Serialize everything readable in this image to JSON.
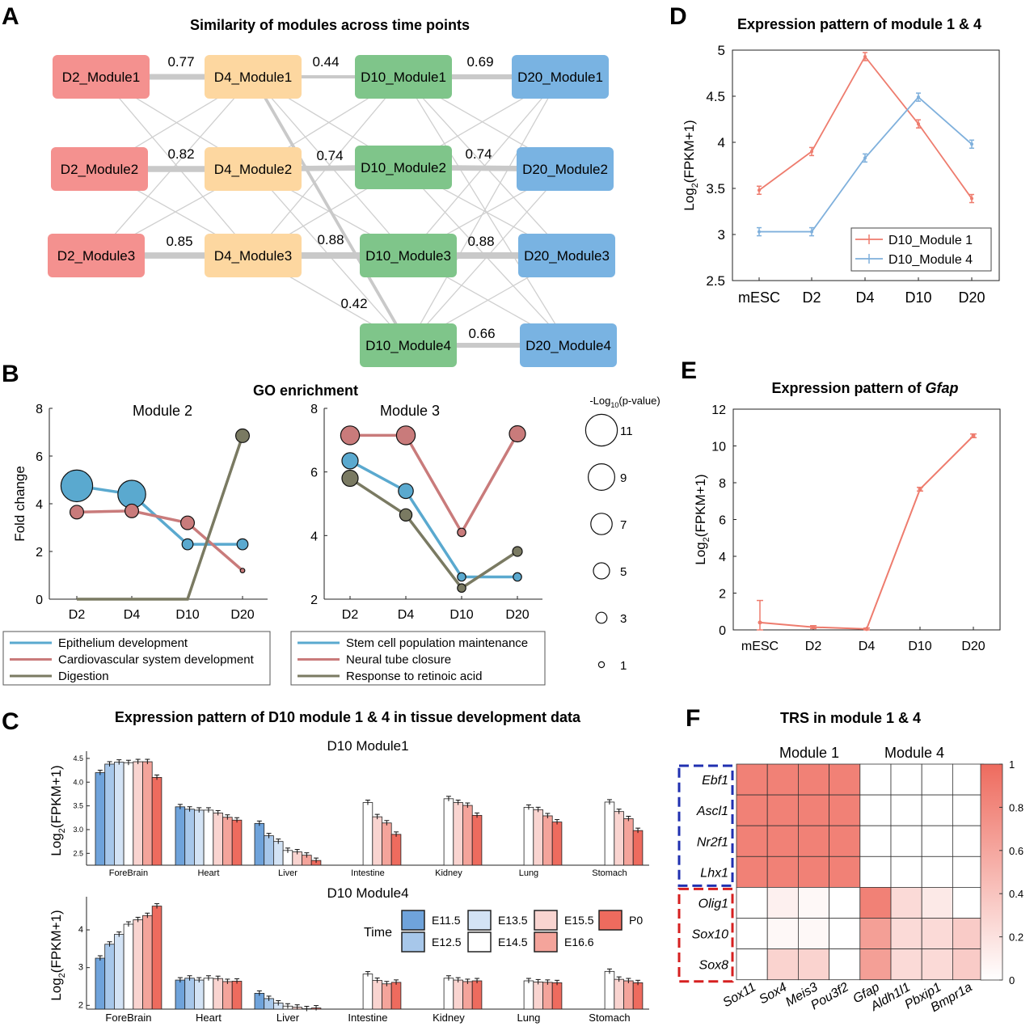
{
  "panel_letters": {
    "A": "A",
    "B": "B",
    "C": "C",
    "D": "D",
    "E": "E",
    "F": "F"
  },
  "panelA": {
    "title": "Similarity of modules across time points",
    "columns": [
      [
        "D2_Module1",
        "D2_Module2",
        "D2_Module3"
      ],
      [
        "D4_Module1",
        "D4_Module2",
        "D4_Module3"
      ],
      [
        "D10_Module1",
        "D10_Module2",
        "D10_Module3",
        "D10_Module4"
      ],
      [
        "D20_Module1",
        "D20_Module2",
        "D20_Module3",
        "D20_Module4"
      ]
    ],
    "column_colors": [
      "#f4918f",
      "#fdd7a0",
      "#7fc58a",
      "#79b3e2"
    ],
    "strong_edges": [
      {
        "from": [
          0,
          0
        ],
        "to": [
          1,
          0
        ],
        "label": "0.77"
      },
      {
        "from": [
          1,
          0
        ],
        "to": [
          2,
          0
        ],
        "label": "0.44"
      },
      {
        "from": [
          2,
          0
        ],
        "to": [
          3,
          0
        ],
        "label": "0.69"
      },
      {
        "from": [
          0,
          1
        ],
        "to": [
          1,
          1
        ],
        "label": "0.82"
      },
      {
        "from": [
          1,
          1
        ],
        "to": [
          2,
          1
        ],
        "label": "0.74"
      },
      {
        "from": [
          2,
          1
        ],
        "to": [
          3,
          1
        ],
        "label": "0.74"
      },
      {
        "from": [
          0,
          2
        ],
        "to": [
          1,
          2
        ],
        "label": "0.85"
      },
      {
        "from": [
          1,
          2
        ],
        "to": [
          2,
          2
        ],
        "label": "0.88"
      },
      {
        "from": [
          2,
          2
        ],
        "to": [
          3,
          2
        ],
        "label": "0.88"
      },
      {
        "from": [
          1,
          0
        ],
        "to": [
          2,
          3
        ],
        "label": "0.42"
      },
      {
        "from": [
          2,
          3
        ],
        "to": [
          3,
          3
        ],
        "label": "0.66"
      }
    ]
  },
  "panelB": {
    "title": "GO enrichment",
    "size_legend": {
      "title": "-Log10(p-value)",
      "levels": [
        "11",
        "9",
        "7",
        "5",
        "3",
        "1"
      ]
    },
    "charts": [
      {
        "title": "Module 2",
        "ylabel": "Fold change",
        "categories": [
          "D2",
          "D4",
          "D10",
          "D20"
        ],
        "yticks": [
          "0",
          "2",
          "4",
          "6",
          "8"
        ],
        "legend": [
          "Epithelium development",
          "Cardiovascular system development",
          "Digestion"
        ]
      },
      {
        "title": "Module 3",
        "ylabel": "",
        "categories": [
          "D2",
          "D4",
          "D10",
          "D20"
        ],
        "yticks": [
          "2",
          "4",
          "6",
          "8"
        ],
        "legend": [
          "Stem cell population maintenance",
          "Neural tube closure",
          "Response to retinoic acid"
        ]
      }
    ]
  },
  "panelC": {
    "title": "Expression pattern of D10 module 1 & 4 in tissue development data",
    "legend_title": "Time",
    "timepoints": [
      "E11.5",
      "E12.5",
      "E13.5",
      "E14.5",
      "E15.5",
      "E16.6",
      "P0"
    ],
    "subpanels": [
      {
        "title": "D10 Module1",
        "ylabel": "Log2(FPKM+1)",
        "yticks": [
          "2.5",
          "3.0",
          "3.5",
          "4.0",
          "4.5"
        ]
      },
      {
        "title": "D10 Module4",
        "ylabel": "Log2(FPKM+1)",
        "yticks": [
          "2",
          "3",
          "4"
        ]
      }
    ]
  },
  "panelD": {
    "title": "Expression pattern of module 1 & 4",
    "ylabel": "Log2(FPKM+1)",
    "yticks": [
      "2.5",
      "3",
      "3.5",
      "4",
      "4.5",
      "5"
    ],
    "legend": [
      "D10_Module 1",
      "D10_Module 4"
    ]
  },
  "panelE": {
    "title": "Expression pattern of ",
    "title_gene": "Gfap",
    "ylabel": "Log2(FPKM+1)",
    "yticks": [
      "0",
      "2",
      "4",
      "6",
      "8",
      "10",
      "12"
    ]
  },
  "panelF": {
    "title": "TRS in module 1 & 4",
    "col_groups": [
      "Module 1",
      "Module 4"
    ],
    "rows": [
      "Ebf1",
      "Ascl1",
      "Nr2f1",
      "Lhx1",
      "Olig1",
      "Sox10",
      "Sox8"
    ],
    "cols": [
      "Sox11",
      "Sox4",
      "Meis3",
      "Pou3f2",
      "Gfap",
      "Aldh1l1",
      "Pbxip1",
      "Bmpr1a"
    ],
    "colorbar_ticks": [
      "0",
      "0.2",
      "0.4",
      "0.6",
      "0.8",
      "1"
    ]
  },
  "chart_data": [
    {
      "type": "line",
      "title": "Module 2",
      "xlabel": "",
      "ylabel": "Fold change",
      "ylim": [
        0,
        8
      ],
      "categories": [
        "D2",
        "D4",
        "D10",
        "D20"
      ],
      "series": [
        {
          "name": "Epithelium development",
          "color": "#5aa9cf",
          "values": [
            4.75,
            4.4,
            2.3,
            2.3
          ],
          "neglog10p": [
            11,
            9.5,
            3,
            3
          ]
        },
        {
          "name": "Cardiovascular system development",
          "color": "#c97b7b",
          "values": [
            3.65,
            3.7,
            3.2,
            1.2
          ],
          "neglog10p": [
            4,
            4,
            4,
            0.5
          ]
        },
        {
          "name": "Digestion",
          "color": "#7a7a62",
          "values": [
            0,
            0,
            0,
            6.85
          ],
          "neglog10p": [
            0,
            0,
            0,
            4
          ]
        }
      ]
    },
    {
      "type": "line",
      "title": "Module 3",
      "xlabel": "",
      "ylabel": "",
      "ylim": [
        2,
        8
      ],
      "categories": [
        "D2",
        "D4",
        "D10",
        "D20"
      ],
      "series": [
        {
          "name": "Stem cell population maintenance",
          "color": "#5aa9cf",
          "values": [
            6.35,
            5.4,
            2.7,
            2.7
          ],
          "neglog10p": [
            5,
            4.5,
            2,
            2
          ]
        },
        {
          "name": "Neural tube closure",
          "color": "#c97b7b",
          "values": [
            7.15,
            7.15,
            4.1,
            7.2
          ],
          "neglog10p": [
            6,
            6,
            2,
            5
          ]
        },
        {
          "name": "Response to retinoic acid",
          "color": "#7a7a62",
          "values": [
            5.8,
            4.65,
            2.35,
            3.5
          ],
          "neglog10p": [
            5,
            3.5,
            2,
            2.5
          ]
        }
      ]
    },
    {
      "type": "bar",
      "title": "D10 Module1",
      "ylabel": "Log2(FPKM+1)",
      "ylim": [
        2.25,
        4.55
      ],
      "categories": [
        "ForeBrain",
        "Heart",
        "Liver",
        "Intestine",
        "Kidney",
        "Lung",
        "Stomach"
      ],
      "series": [
        {
          "name": "E11.5",
          "values": [
            4.2,
            3.48,
            3.13,
            null,
            null,
            null,
            null
          ]
        },
        {
          "name": "E12.5",
          "values": [
            4.38,
            3.43,
            2.87,
            null,
            null,
            null,
            null
          ]
        },
        {
          "name": "E13.5",
          "values": [
            4.42,
            3.41,
            2.75,
            null,
            null,
            null,
            null
          ]
        },
        {
          "name": "E14.5",
          "values": [
            4.41,
            3.41,
            2.56,
            3.57,
            3.65,
            3.47,
            3.58
          ]
        },
        {
          "name": "E15.5",
          "values": [
            4.43,
            3.35,
            2.53,
            3.27,
            3.57,
            3.42,
            3.38
          ]
        },
        {
          "name": "E16.6",
          "values": [
            4.43,
            3.26,
            2.46,
            3.14,
            3.51,
            3.29,
            3.23
          ]
        },
        {
          "name": "P0",
          "values": [
            4.1,
            3.2,
            2.35,
            2.9,
            3.3,
            3.16,
            2.98
          ]
        }
      ]
    },
    {
      "type": "bar",
      "title": "D10 Module4",
      "ylabel": "Log2(FPKM+1)",
      "ylim": [
        1.9,
        4.75
      ],
      "categories": [
        "ForeBrain",
        "Heart",
        "Liver",
        "Intestine",
        "Kidney",
        "Lung",
        "Stomach"
      ],
      "series": [
        {
          "name": "E11.5",
          "values": [
            3.25,
            2.67,
            2.32,
            null,
            null,
            null,
            null
          ]
        },
        {
          "name": "E12.5",
          "values": [
            3.62,
            2.72,
            2.18,
            null,
            null,
            null,
            null
          ]
        },
        {
          "name": "E13.5",
          "values": [
            3.88,
            2.67,
            2.06,
            null,
            null,
            null,
            null
          ]
        },
        {
          "name": "E14.5",
          "values": [
            4.15,
            2.72,
            1.98,
            2.83,
            2.72,
            2.65,
            2.9
          ]
        },
        {
          "name": "E15.5",
          "values": [
            4.27,
            2.71,
            1.95,
            2.66,
            2.67,
            2.62,
            2.69
          ]
        },
        {
          "name": "E16.6",
          "values": [
            4.38,
            2.63,
            1.91,
            2.57,
            2.63,
            2.61,
            2.65
          ]
        },
        {
          "name": "P0",
          "values": [
            4.63,
            2.64,
            1.93,
            2.61,
            2.65,
            2.6,
            2.6
          ]
        }
      ]
    },
    {
      "type": "line",
      "title": "Expression pattern of module 1 & 4",
      "ylabel": "Log2(FPKM+1)",
      "ylim": [
        2.5,
        5
      ],
      "categories": [
        "mESC",
        "D2",
        "D4",
        "D10",
        "D20"
      ],
      "series": [
        {
          "name": "D10_Module 1",
          "color": "#ee7c6e",
          "values": [
            3.48,
            3.9,
            4.93,
            4.2,
            3.39
          ]
        },
        {
          "name": "D10_Module 4",
          "color": "#7fb0dc",
          "values": [
            3.03,
            3.03,
            3.83,
            4.49,
            3.98
          ]
        }
      ]
    },
    {
      "type": "line",
      "title": "Expression pattern of Gfap",
      "ylabel": "Log2(FPKM+1)",
      "ylim": [
        0,
        12
      ],
      "categories": [
        "mESC",
        "D2",
        "D4",
        "D10",
        "D20"
      ],
      "series": [
        {
          "name": "Gfap",
          "color": "#ee7c6e",
          "values": [
            0.4,
            0.15,
            0.05,
            7.65,
            10.55
          ]
        }
      ]
    },
    {
      "type": "heatmap",
      "title": "TRS in module 1 & 4",
      "rows": [
        "Ebf1",
        "Ascl1",
        "Nr2f1",
        "Lhx1",
        "Olig1",
        "Sox10",
        "Sox8"
      ],
      "cols": [
        "Sox11",
        "Sox4",
        "Meis3",
        "Pou3f2",
        "Gfap",
        "Aldh1l1",
        "Pbxip1",
        "Bmpr1a"
      ],
      "values": [
        [
          0.85,
          0.85,
          0.85,
          0.85,
          0,
          0,
          0,
          0
        ],
        [
          0.85,
          0.85,
          0.85,
          0.85,
          0,
          0,
          0,
          0
        ],
        [
          0.85,
          0.85,
          0.85,
          0.85,
          0,
          0,
          0,
          0
        ],
        [
          0.85,
          0.85,
          0.85,
          0.85,
          0,
          0,
          0,
          0
        ],
        [
          0,
          0.1,
          0.05,
          0,
          0.85,
          0.25,
          0.15,
          0
        ],
        [
          0,
          0.05,
          0.05,
          0,
          0.65,
          0.25,
          0.25,
          0.35
        ],
        [
          0,
          0.3,
          0.3,
          0,
          0.65,
          0.25,
          0.25,
          0.35
        ]
      ]
    }
  ]
}
